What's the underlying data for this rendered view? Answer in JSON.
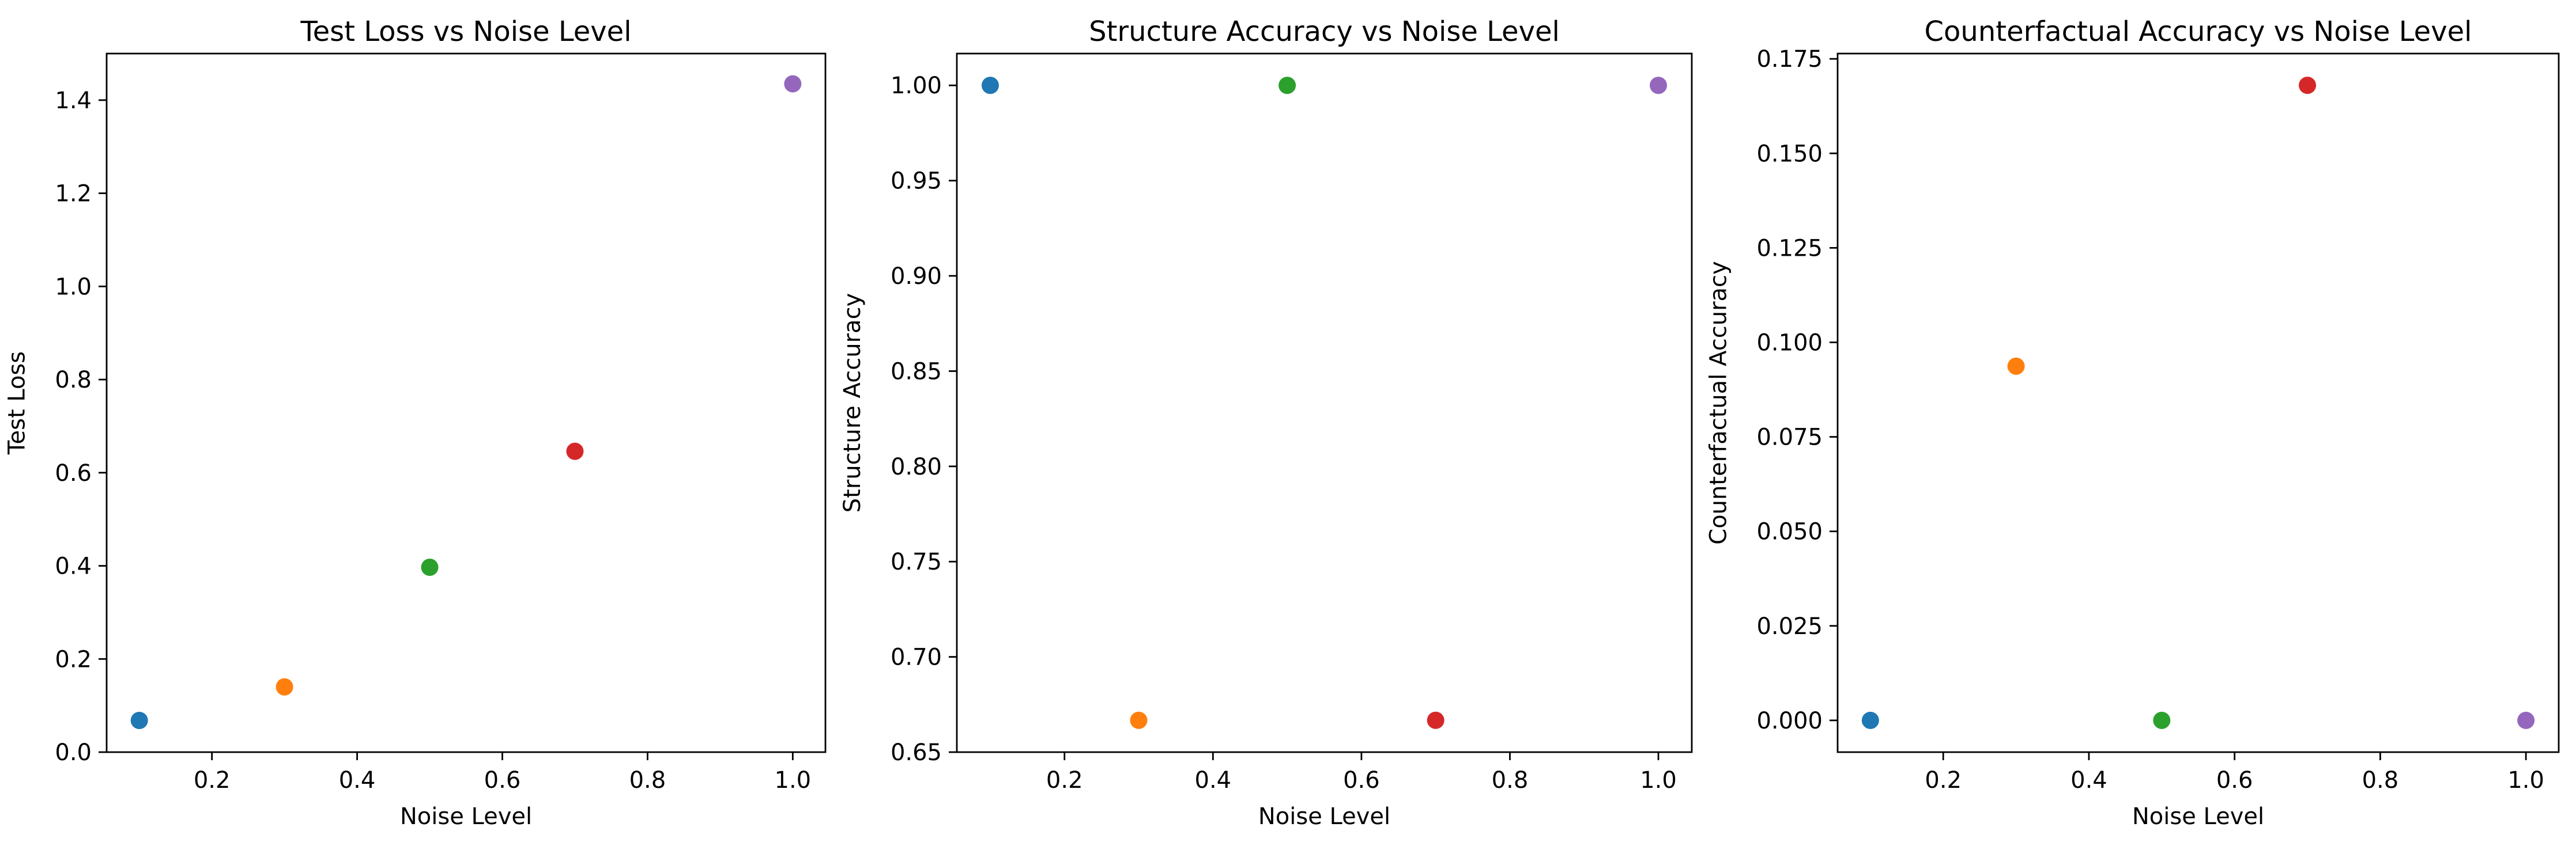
{
  "chart_data": [
    {
      "type": "scatter",
      "title": "Test Loss vs Noise Level",
      "xlabel": "Noise Level",
      "ylabel": "Test Loss",
      "xlim": [
        0.055,
        1.045
      ],
      "ylim": [
        0.0,
        1.5
      ],
      "xticks": [
        0.2,
        0.4,
        0.6,
        0.8,
        1.0
      ],
      "xtick_labels": [
        "0.2",
        "0.4",
        "0.6",
        "0.8",
        "1.0"
      ],
      "yticks": [
        0.0,
        0.2,
        0.4,
        0.6,
        0.8,
        1.0,
        1.2,
        1.4
      ],
      "ytick_labels": [
        "0.0",
        "0.2",
        "0.4",
        "0.6",
        "0.8",
        "1.0",
        "1.2",
        "1.4"
      ],
      "grid": false,
      "points": [
        {
          "x": 0.1,
          "y": 0.068,
          "color": "#1f77b4"
        },
        {
          "x": 0.3,
          "y": 0.14,
          "color": "#ff7f0e"
        },
        {
          "x": 0.5,
          "y": 0.397,
          "color": "#2ca02c"
        },
        {
          "x": 0.7,
          "y": 0.646,
          "color": "#d62728"
        },
        {
          "x": 1.0,
          "y": 1.435,
          "color": "#9467bd"
        }
      ]
    },
    {
      "type": "scatter",
      "title": "Structure Accuracy vs Noise Level",
      "xlabel": "Noise Level",
      "ylabel": "Structure Accuracy",
      "xlim": [
        0.055,
        1.045
      ],
      "ylim": [
        0.65,
        1.0167
      ],
      "xticks": [
        0.2,
        0.4,
        0.6,
        0.8,
        1.0
      ],
      "xtick_labels": [
        "0.2",
        "0.4",
        "0.6",
        "0.8",
        "1.0"
      ],
      "yticks": [
        0.65,
        0.7,
        0.75,
        0.8,
        0.85,
        0.9,
        0.95,
        1.0
      ],
      "ytick_labels": [
        "0.65",
        "0.70",
        "0.75",
        "0.80",
        "0.85",
        "0.90",
        "0.95",
        "1.00"
      ],
      "grid": false,
      "points": [
        {
          "x": 0.1,
          "y": 1.0,
          "color": "#1f77b4"
        },
        {
          "x": 0.3,
          "y": 0.6667,
          "color": "#ff7f0e"
        },
        {
          "x": 0.5,
          "y": 1.0,
          "color": "#2ca02c"
        },
        {
          "x": 0.7,
          "y": 0.6667,
          "color": "#d62728"
        },
        {
          "x": 1.0,
          "y": 1.0,
          "color": "#9467bd"
        }
      ]
    },
    {
      "type": "scatter",
      "title": "Counterfactual Accuracy vs Noise Level",
      "xlabel": "Noise Level",
      "ylabel": "Counterfactual Accuracy",
      "xlim": [
        0.055,
        1.045
      ],
      "ylim": [
        -0.0084,
        0.1764
      ],
      "xticks": [
        0.2,
        0.4,
        0.6,
        0.8,
        1.0
      ],
      "xtick_labels": [
        "0.2",
        "0.4",
        "0.6",
        "0.8",
        "1.0"
      ],
      "yticks": [
        0.0,
        0.025,
        0.05,
        0.075,
        0.1,
        0.125,
        0.15,
        0.175
      ],
      "ytick_labels": [
        "0.000",
        "0.025",
        "0.050",
        "0.075",
        "0.100",
        "0.125",
        "0.150",
        "0.175"
      ],
      "grid": false,
      "points": [
        {
          "x": 0.1,
          "y": 0.0,
          "color": "#1f77b4"
        },
        {
          "x": 0.3,
          "y": 0.0937,
          "color": "#ff7f0e"
        },
        {
          "x": 0.5,
          "y": 0.0,
          "color": "#2ca02c"
        },
        {
          "x": 0.7,
          "y": 0.168,
          "color": "#d62728"
        },
        {
          "x": 1.0,
          "y": 0.0,
          "color": "#9467bd"
        }
      ]
    }
  ]
}
